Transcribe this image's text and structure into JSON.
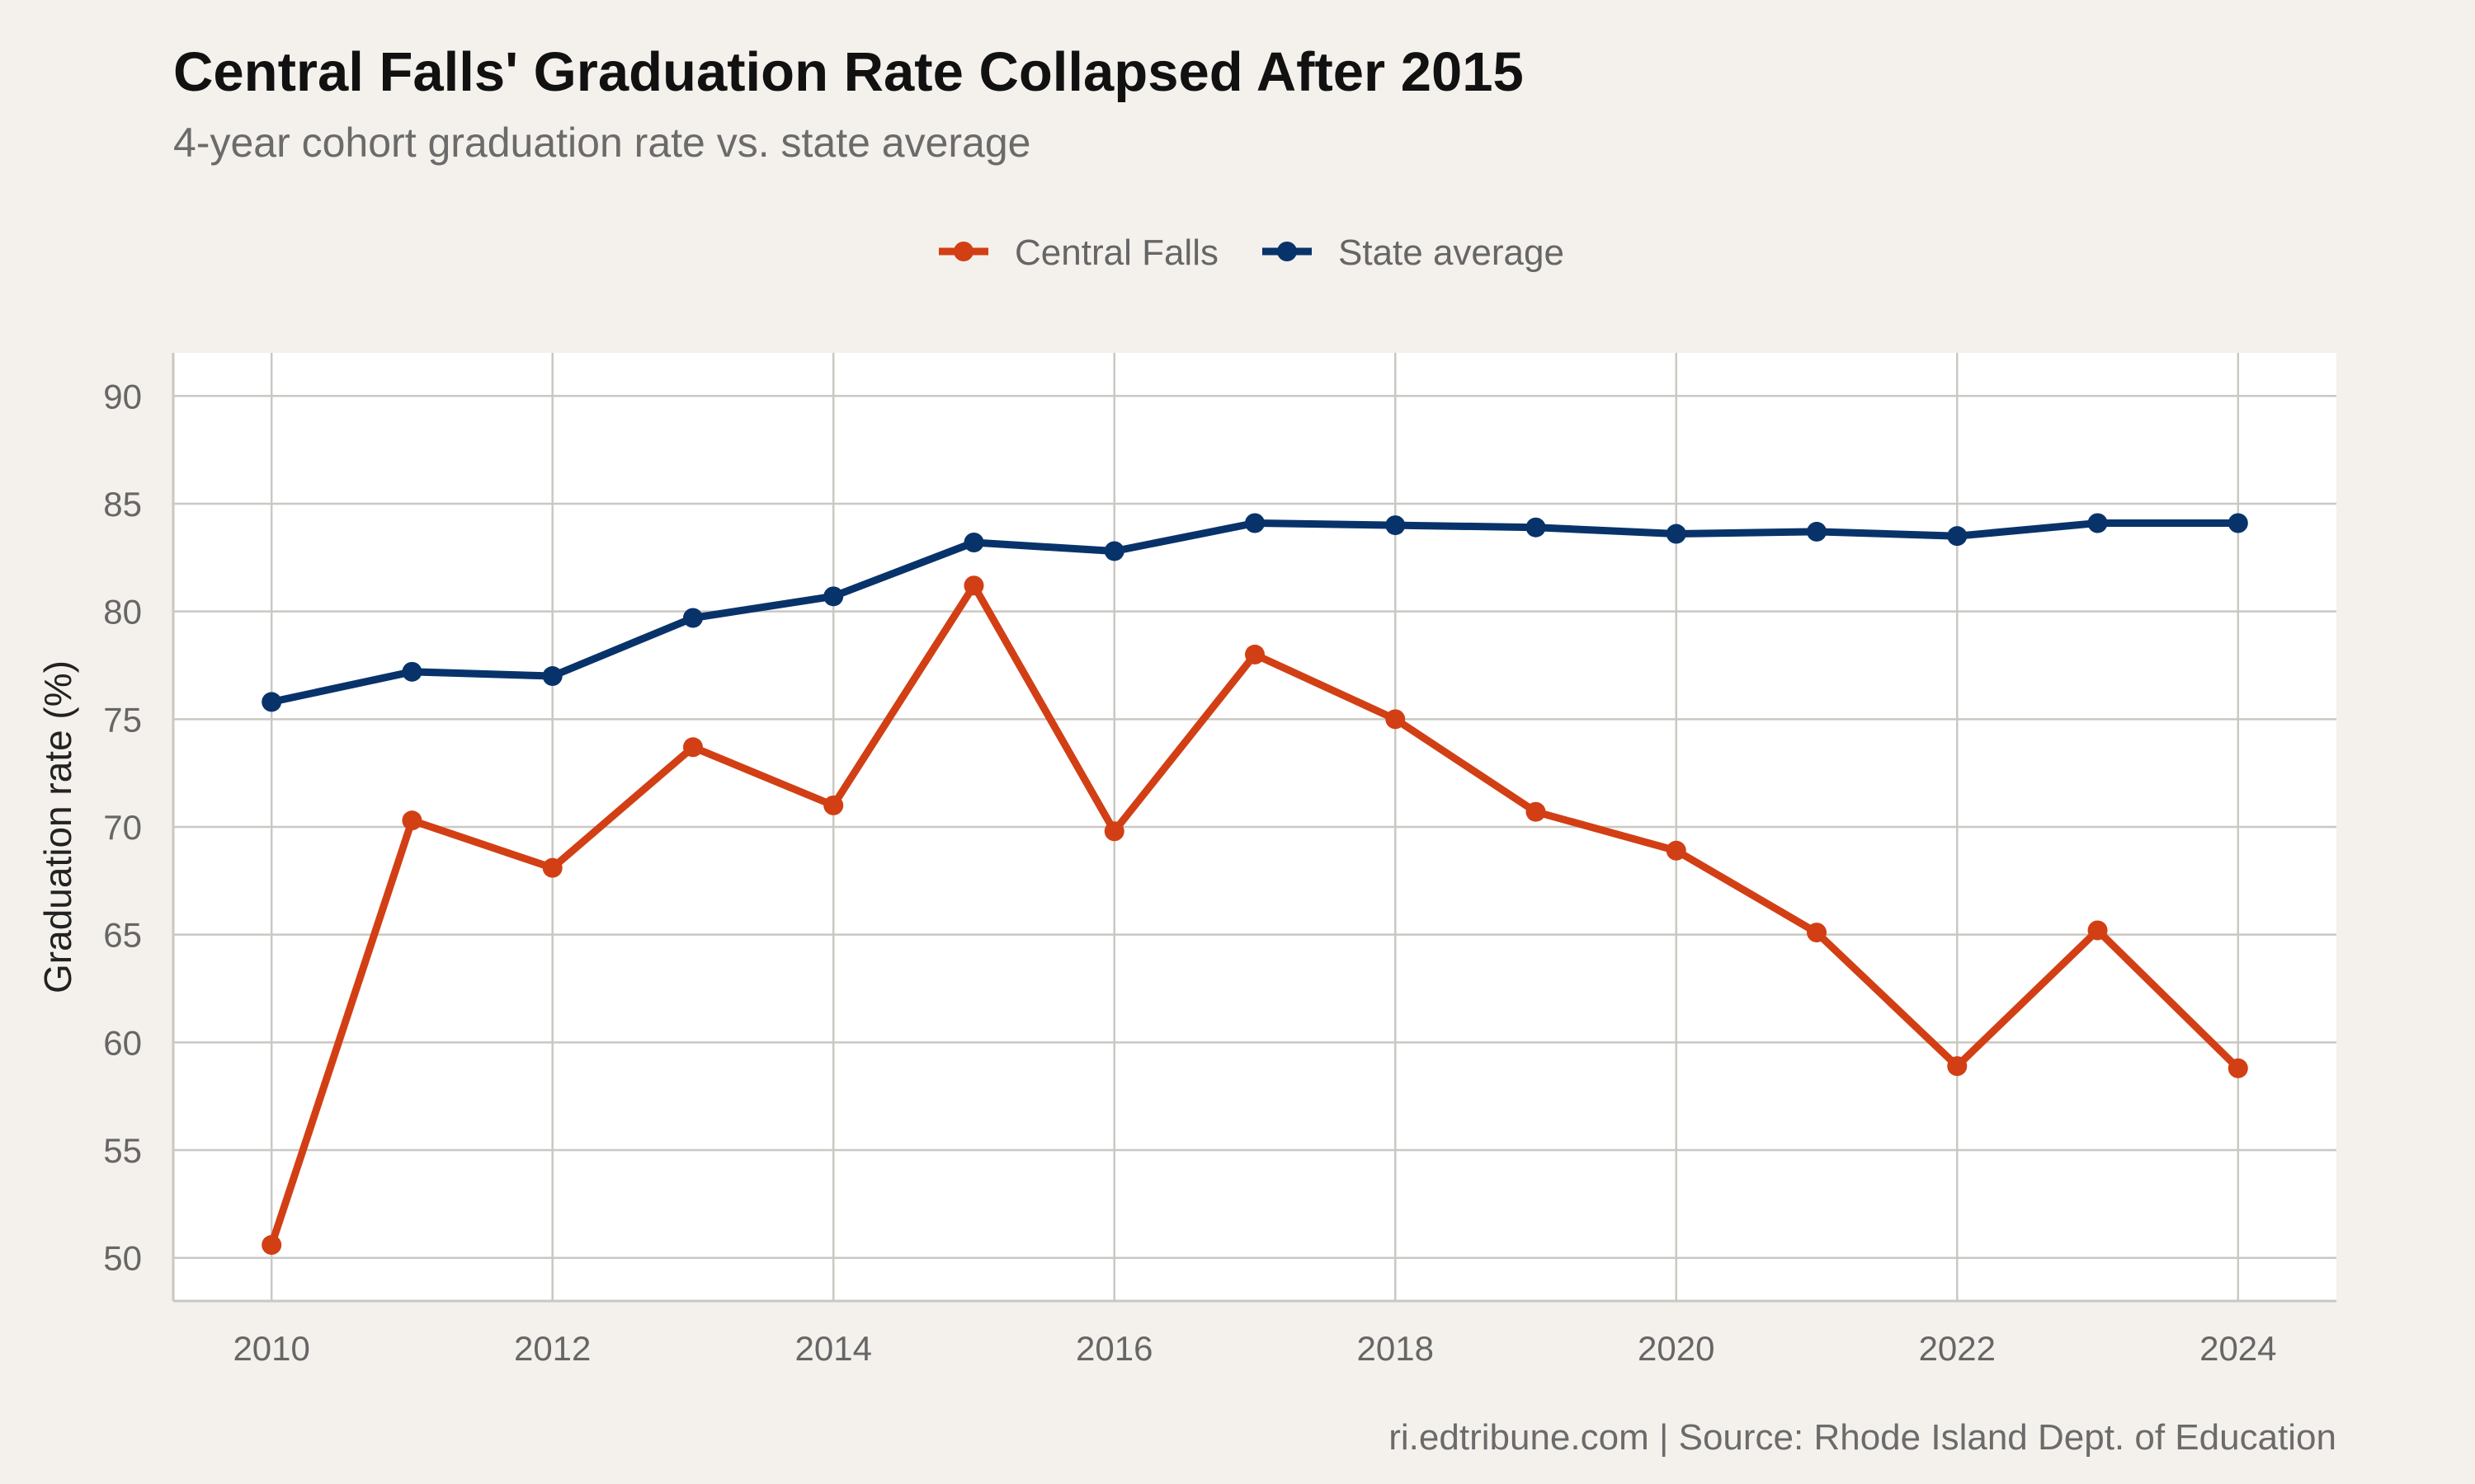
{
  "chart_data": {
    "type": "line",
    "title": "Central Falls' Graduation Rate Collapsed After 2015",
    "subtitle": "4-year cohort graduation rate vs. state average",
    "ylabel": "Graduation rate (%)",
    "xlabel": "",
    "caption": "ri.edtribune.com | Source: Rhode Island Dept. of Education",
    "x": [
      2010,
      2011,
      2012,
      2013,
      2014,
      2015,
      2016,
      2017,
      2018,
      2019,
      2020,
      2021,
      2022,
      2023,
      2024
    ],
    "xlim": [
      2009.3,
      2024.7
    ],
    "ylim": [
      48,
      92
    ],
    "xticks": [
      2010,
      2012,
      2014,
      2016,
      2018,
      2020,
      2022,
      2024
    ],
    "yticks": [
      50,
      55,
      60,
      65,
      70,
      75,
      80,
      85,
      90
    ],
    "grid": true,
    "legend_position": "top",
    "series": [
      {
        "name": "Central Falls",
        "color": "#d23f14",
        "values": [
          50.6,
          70.3,
          68.1,
          73.7,
          71.0,
          81.2,
          69.8,
          78.0,
          75.0,
          70.7,
          68.9,
          65.1,
          58.9,
          65.2,
          58.8
        ]
      },
      {
        "name": "State average",
        "color": "#08336a",
        "values": [
          75.8,
          77.2,
          77.0,
          79.7,
          80.7,
          83.2,
          82.8,
          84.1,
          84.0,
          83.9,
          83.6,
          83.7,
          83.5,
          84.1,
          84.1
        ]
      }
    ]
  }
}
